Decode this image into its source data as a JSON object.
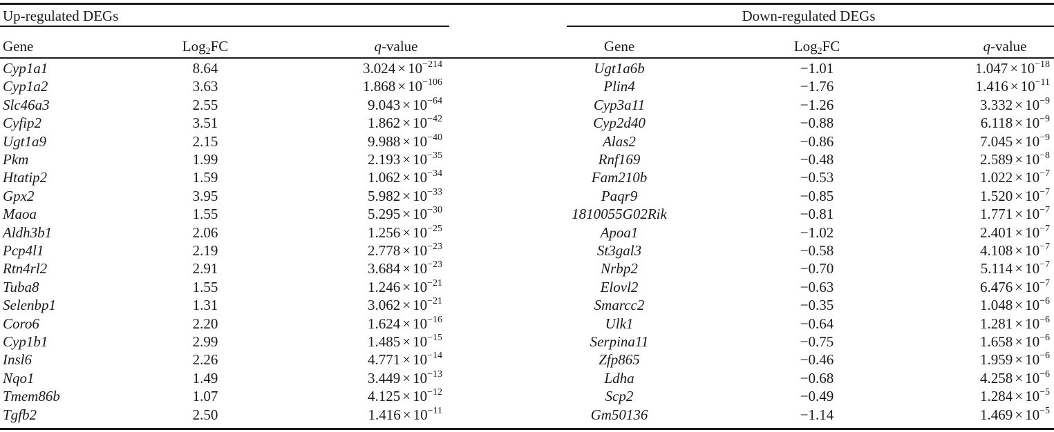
{
  "table": {
    "up_title": "Up-regulated DEGs",
    "down_title": "Down-regulated DEGs",
    "col_gene": "Gene",
    "col_log_main": "Log",
    "col_log_sub": "2",
    "col_log_tail": "FC",
    "col_q_italic": "q",
    "col_q_tail": "-value",
    "times": "×",
    "base": "10",
    "up_rows": [
      {
        "gene": "Cyp1a1",
        "fc": "8.64",
        "q_mant": "3.024",
        "q_exp": "−214"
      },
      {
        "gene": "Cyp1a2",
        "fc": "3.63",
        "q_mant": "1.868",
        "q_exp": "−106"
      },
      {
        "gene": "Slc46a3",
        "fc": "2.55",
        "q_mant": "9.043",
        "q_exp": "−64"
      },
      {
        "gene": "Cyfip2",
        "fc": "3.51",
        "q_mant": "1.862",
        "q_exp": "−42"
      },
      {
        "gene": "Ugt1a9",
        "fc": "2.15",
        "q_mant": "9.988",
        "q_exp": "−40"
      },
      {
        "gene": "Pkm",
        "fc": "1.99",
        "q_mant": "2.193",
        "q_exp": "−35"
      },
      {
        "gene": "Htatip2",
        "fc": "1.59",
        "q_mant": "1.062",
        "q_exp": "−34"
      },
      {
        "gene": "Gpx2",
        "fc": "3.95",
        "q_mant": "5.982",
        "q_exp": "−33"
      },
      {
        "gene": "Maoa",
        "fc": "1.55",
        "q_mant": "5.295",
        "q_exp": "−30"
      },
      {
        "gene": "Aldh3b1",
        "fc": "2.06",
        "q_mant": "1.256",
        "q_exp": "−25"
      },
      {
        "gene": "Pcp4l1",
        "fc": "2.19",
        "q_mant": "2.778",
        "q_exp": "−23"
      },
      {
        "gene": "Rtn4rl2",
        "fc": "2.91",
        "q_mant": "3.684",
        "q_exp": "−23"
      },
      {
        "gene": "Tuba8",
        "fc": "1.55",
        "q_mant": "1.246",
        "q_exp": "−21"
      },
      {
        "gene": "Selenbp1",
        "fc": "1.31",
        "q_mant": "3.062",
        "q_exp": "−21"
      },
      {
        "gene": "Coro6",
        "fc": "2.20",
        "q_mant": "1.624",
        "q_exp": "−16"
      },
      {
        "gene": "Cyp1b1",
        "fc": "2.99",
        "q_mant": "1.485",
        "q_exp": "−15"
      },
      {
        "gene": "Insl6",
        "fc": "2.26",
        "q_mant": "4.771",
        "q_exp": "−14"
      },
      {
        "gene": "Nqo1",
        "fc": "1.49",
        "q_mant": "3.449",
        "q_exp": "−13"
      },
      {
        "gene": "Tmem86b",
        "fc": "1.07",
        "q_mant": "4.125",
        "q_exp": "−12"
      },
      {
        "gene": "Tgfb2",
        "fc": "2.50",
        "q_mant": "1.416",
        "q_exp": "−11"
      }
    ],
    "down_rows": [
      {
        "gene": "Ugt1a6b",
        "fc": "−1.01",
        "q_mant": "1.047",
        "q_exp": "−18"
      },
      {
        "gene": "Plin4",
        "fc": "−1.76",
        "q_mant": "1.416",
        "q_exp": "−11"
      },
      {
        "gene": "Cyp3a11",
        "fc": "−1.26",
        "q_mant": "3.332",
        "q_exp": "−9"
      },
      {
        "gene": "Cyp2d40",
        "fc": "−0.88",
        "q_mant": "6.118",
        "q_exp": "−9"
      },
      {
        "gene": "Alas2",
        "fc": "−0.86",
        "q_mant": "7.045",
        "q_exp": "−9"
      },
      {
        "gene": "Rnf169",
        "fc": "−0.48",
        "q_mant": "2.589",
        "q_exp": "−8"
      },
      {
        "gene": "Fam210b",
        "fc": "−0.53",
        "q_mant": "1.022",
        "q_exp": "−7"
      },
      {
        "gene": "Paqr9",
        "fc": "−0.85",
        "q_mant": "1.520",
        "q_exp": "−7"
      },
      {
        "gene": "1810055G02Rik",
        "fc": "−0.81",
        "q_mant": "1.771",
        "q_exp": "−7"
      },
      {
        "gene": "Apoa1",
        "fc": "−1.02",
        "q_mant": "2.401",
        "q_exp": "−7"
      },
      {
        "gene": "St3gal3",
        "fc": "−0.58",
        "q_mant": "4.108",
        "q_exp": "−7"
      },
      {
        "gene": "Nrbp2",
        "fc": "−0.70",
        "q_mant": "5.114",
        "q_exp": "−7"
      },
      {
        "gene": "Elovl2",
        "fc": "−0.63",
        "q_mant": "6.476",
        "q_exp": "−7"
      },
      {
        "gene": "Smarcc2",
        "fc": "−0.35",
        "q_mant": "1.048",
        "q_exp": "−6"
      },
      {
        "gene": "Ulk1",
        "fc": "−0.64",
        "q_mant": "1.281",
        "q_exp": "−6"
      },
      {
        "gene": "Serpina11",
        "fc": "−0.75",
        "q_mant": "1.658",
        "q_exp": "−6"
      },
      {
        "gene": "Zfp865",
        "fc": "−0.46",
        "q_mant": "1.959",
        "q_exp": "−6"
      },
      {
        "gene": "Ldha",
        "fc": "−0.68",
        "q_mant": "4.258",
        "q_exp": "−6"
      },
      {
        "gene": "Scp2",
        "fc": "−0.49",
        "q_mant": "1.284",
        "q_exp": "−5"
      },
      {
        "gene": "Gm50136",
        "fc": "−1.14",
        "q_mant": "1.469",
        "q_exp": "−5"
      }
    ]
  }
}
